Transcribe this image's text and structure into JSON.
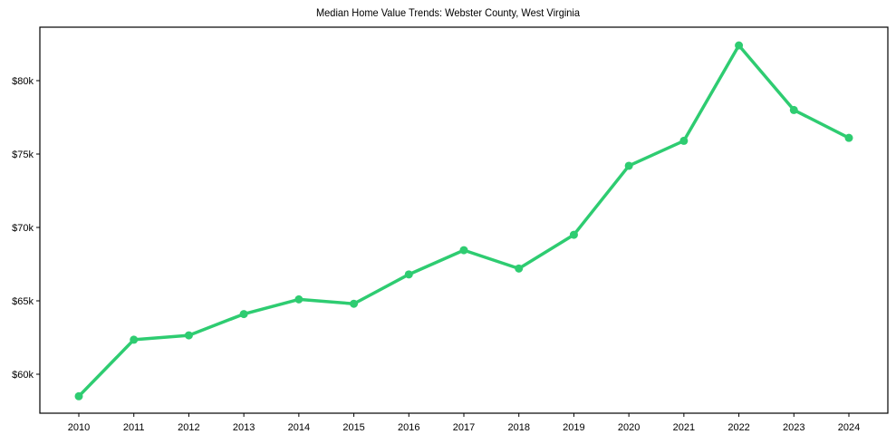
{
  "chart_data": {
    "type": "line",
    "title": "Median Home Value Trends: Webster County, West Virginia",
    "xlabel": "",
    "ylabel": "",
    "categories": [
      "2010",
      "2011",
      "2012",
      "2013",
      "2014",
      "2015",
      "2016",
      "2017",
      "2018",
      "2019",
      "2020",
      "2021",
      "2022",
      "2023",
      "2024"
    ],
    "series": [
      {
        "name": "Median Home Value",
        "color": "#2ecc71",
        "values": [
          58500,
          62350,
          62650,
          64100,
          65100,
          64800,
          66800,
          68450,
          67200,
          69500,
          74200,
          75900,
          82400,
          78000,
          76100
        ]
      }
    ],
    "yticks": [
      60000,
      65000,
      70000,
      75000,
      80000
    ],
    "ytick_labels": [
      "$60k",
      "$65k",
      "$70k",
      "$75k",
      "$80k"
    ],
    "ylim": [
      57500,
      83500
    ],
    "grid": false,
    "legend": null,
    "marker": "circle"
  }
}
